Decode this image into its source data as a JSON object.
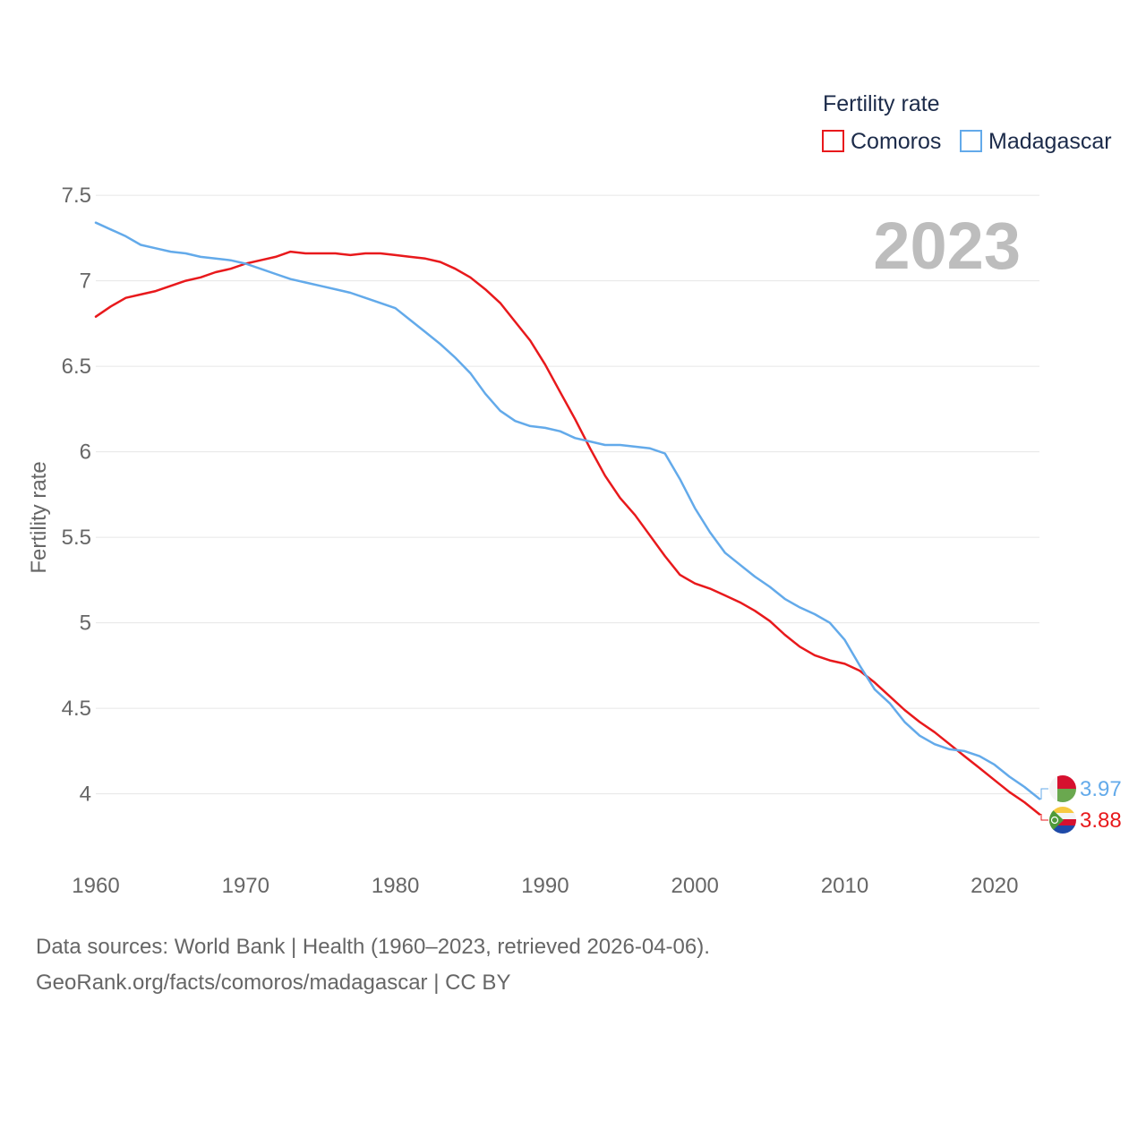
{
  "chart_data": {
    "type": "line",
    "title": "",
    "year_label": "2023",
    "xlabel": "",
    "ylabel": "Fertility rate",
    "xlim": [
      1960,
      2023
    ],
    "ylim": [
      3.6,
      7.6
    ],
    "x_ticks": [
      1960,
      1970,
      1980,
      1990,
      2000,
      2010,
      2020
    ],
    "y_ticks": [
      4,
      4.5,
      5,
      5.5,
      6,
      6.5,
      7,
      7.5
    ],
    "y_tick_labels": [
      "4",
      "4.5",
      "5",
      "5.5",
      "6",
      "6.5",
      "7",
      "7.5"
    ],
    "legend": {
      "title": "Fertility rate",
      "position": "top-right"
    },
    "x": [
      1960,
      1961,
      1962,
      1963,
      1964,
      1965,
      1966,
      1967,
      1968,
      1969,
      1970,
      1971,
      1972,
      1973,
      1974,
      1975,
      1976,
      1977,
      1978,
      1979,
      1980,
      1981,
      1982,
      1983,
      1984,
      1985,
      1986,
      1987,
      1988,
      1989,
      1990,
      1991,
      1992,
      1993,
      1994,
      1995,
      1996,
      1997,
      1998,
      1999,
      2000,
      2001,
      2002,
      2003,
      2004,
      2005,
      2006,
      2007,
      2008,
      2009,
      2010,
      2011,
      2012,
      2013,
      2014,
      2015,
      2016,
      2017,
      2018,
      2019,
      2020,
      2021,
      2022,
      2023
    ],
    "series": [
      {
        "name": "Comoros",
        "color": "#e8191c",
        "end_label": "3.88",
        "values": [
          6.79,
          6.85,
          6.9,
          6.92,
          6.94,
          6.97,
          7.0,
          7.02,
          7.05,
          7.07,
          7.1,
          7.12,
          7.14,
          7.17,
          7.16,
          7.16,
          7.16,
          7.15,
          7.16,
          7.16,
          7.15,
          7.14,
          7.13,
          7.11,
          7.07,
          7.02,
          6.95,
          6.87,
          6.76,
          6.65,
          6.51,
          6.35,
          6.19,
          6.02,
          5.86,
          5.73,
          5.63,
          5.51,
          5.39,
          5.28,
          5.23,
          5.2,
          5.16,
          5.12,
          5.07,
          5.01,
          4.93,
          4.86,
          4.81,
          4.78,
          4.76,
          4.72,
          4.65,
          4.57,
          4.49,
          4.42,
          4.36,
          4.29,
          4.22,
          4.15,
          4.08,
          4.01,
          3.95,
          3.88
        ]
      },
      {
        "name": "Madagascar",
        "color": "#63aaea",
        "end_label": "3.97",
        "values": [
          7.34,
          7.3,
          7.26,
          7.21,
          7.19,
          7.17,
          7.16,
          7.14,
          7.13,
          7.12,
          7.1,
          7.07,
          7.04,
          7.01,
          6.99,
          6.97,
          6.95,
          6.93,
          6.9,
          6.87,
          6.84,
          6.77,
          6.7,
          6.63,
          6.55,
          6.46,
          6.34,
          6.24,
          6.18,
          6.15,
          6.14,
          6.12,
          6.08,
          6.06,
          6.04,
          6.04,
          6.03,
          6.02,
          5.99,
          5.84,
          5.67,
          5.53,
          5.41,
          5.34,
          5.27,
          5.21,
          5.14,
          5.09,
          5.05,
          5.0,
          4.9,
          4.75,
          4.61,
          4.53,
          4.42,
          4.34,
          4.29,
          4.26,
          4.25,
          4.22,
          4.17,
          4.1,
          4.04,
          3.97
        ]
      }
    ]
  },
  "footer": {
    "line1": "Data sources: World Bank | Health (1960–2023, retrieved 2026-04-06).",
    "line2": "GeoRank.org/facts/comoros/madagascar | CC BY"
  }
}
